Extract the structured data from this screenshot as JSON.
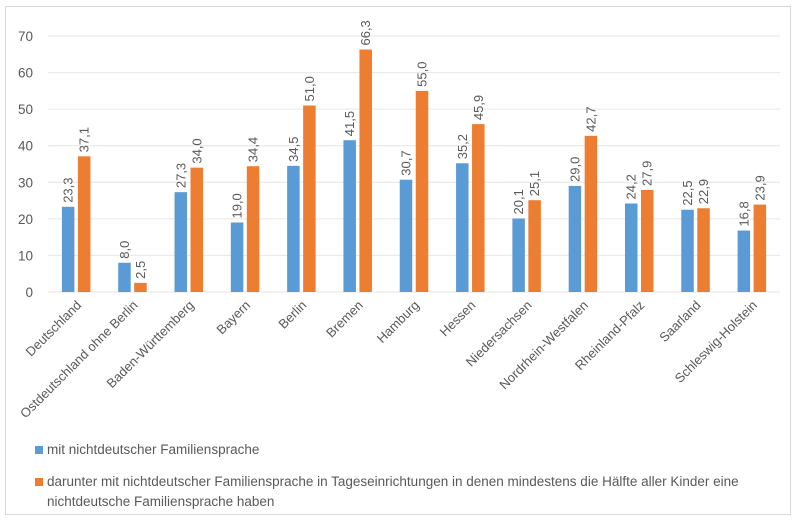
{
  "chart_data": {
    "type": "bar",
    "title": "",
    "xlabel": "",
    "ylabel": "",
    "ylim": [
      0,
      70
    ],
    "yticks": [
      0,
      10,
      20,
      30,
      40,
      50,
      60,
      70
    ],
    "grid": true,
    "legend_position": "bottom",
    "categories": [
      "Deutschland",
      "Ostdeutschland ohne Berlin",
      "Baden-Württemberg",
      "Bayern",
      "Berlin",
      "Bremen",
      "Hamburg",
      "Hessen",
      "Niedersachsen",
      "Nordrhein-Westfalen",
      "Rheinland-Pfalz",
      "Saarland",
      "Schleswig-Holstein"
    ],
    "series": [
      {
        "name": "mit nichtdeutscher Familiensprache",
        "color": "#5b9bd5",
        "values": [
          23.3,
          8.0,
          27.3,
          19.0,
          34.5,
          41.5,
          30.7,
          35.2,
          20.1,
          29.0,
          24.2,
          22.5,
          16.8
        ],
        "labels": [
          "23,3",
          "8,0",
          "27,3",
          "19,0",
          "34,5",
          "41,5",
          "30,7",
          "35,2",
          "20,1",
          "29,0",
          "24,2",
          "22,5",
          "16,8"
        ]
      },
      {
        "name": "darunter mit nichtdeutscher Familiensprache in Tageseinrichtungen in denen mindestens die Hälfte aller Kinder eine nichtdeutsche Familiensprache haben",
        "color": "#ed7d31",
        "values": [
          37.1,
          2.5,
          34.0,
          34.4,
          51.0,
          66.3,
          55.0,
          45.9,
          25.1,
          42.7,
          27.9,
          22.9,
          23.9
        ],
        "labels": [
          "37,1",
          "2,5",
          "34,0",
          "34,4",
          "51,0",
          "66,3",
          "55,0",
          "45,9",
          "25,1",
          "42,7",
          "27,9",
          "22,9",
          "23,9"
        ]
      }
    ]
  },
  "colors": {
    "grid": "#e6e6e6",
    "axis_text": "#595959",
    "frame": "#d9d9d9"
  }
}
